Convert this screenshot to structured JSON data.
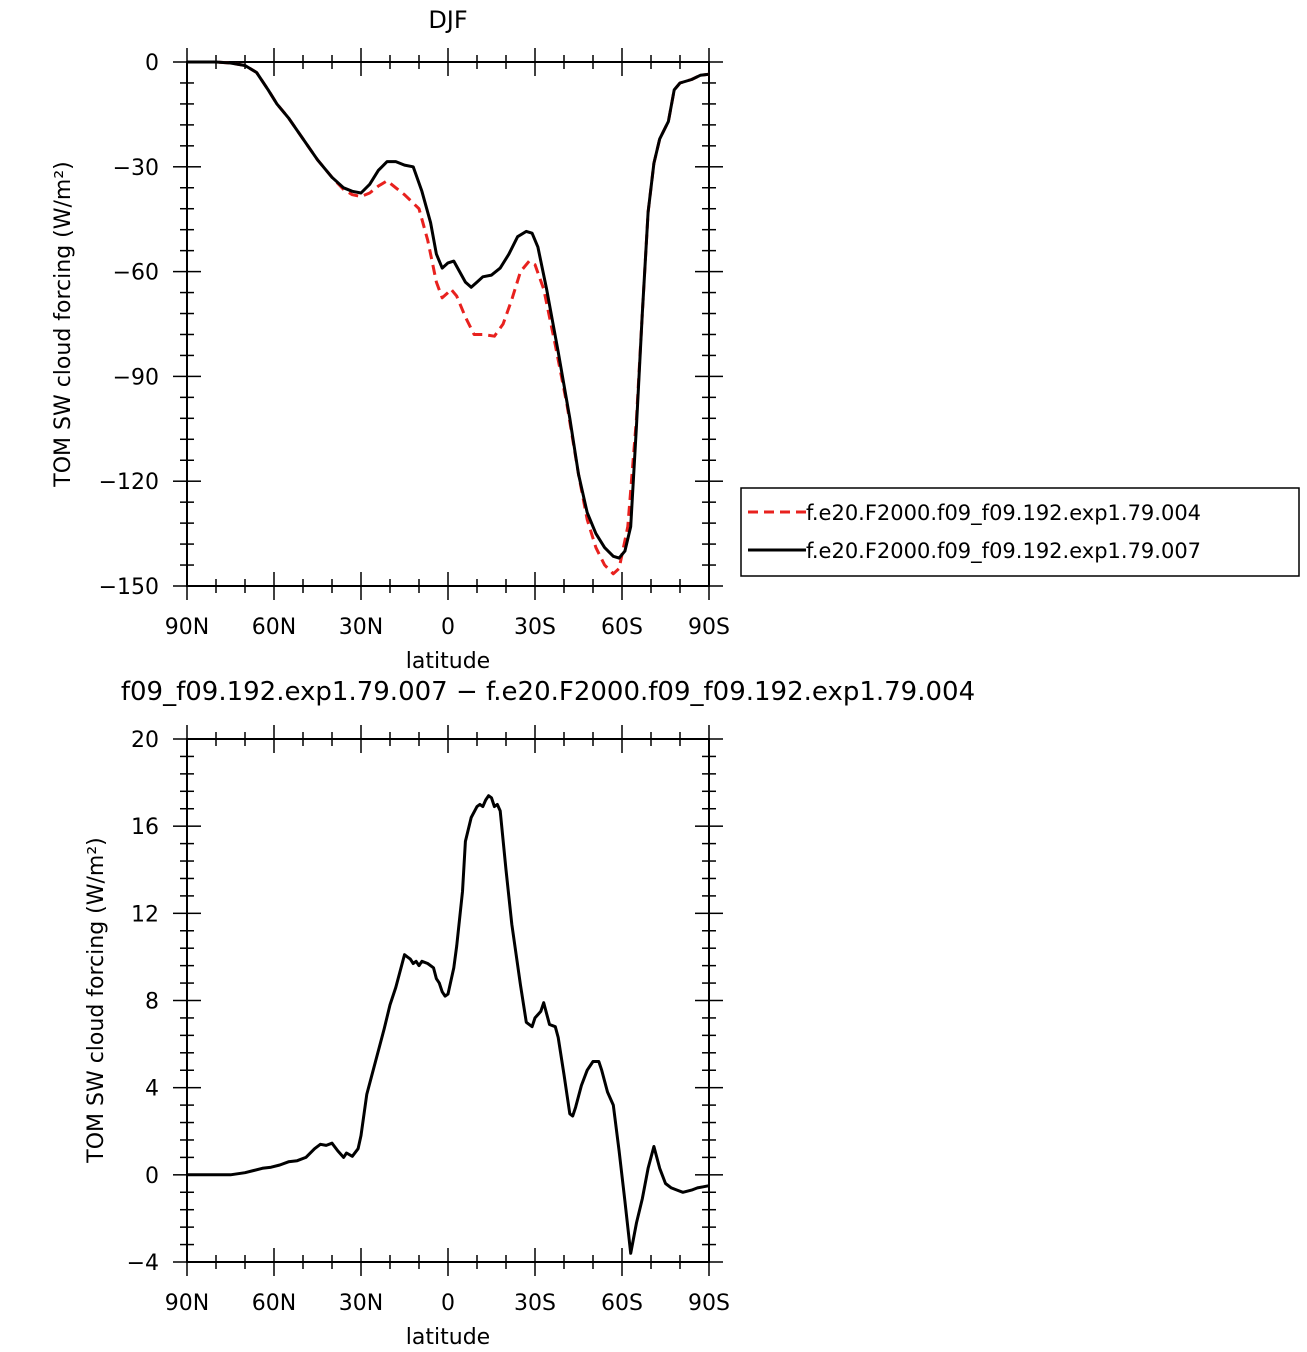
{
  "chart_data": [
    {
      "type": "line",
      "title": "DJF",
      "xlabel": "latitude",
      "ylabel": "TOM SW cloud forcing (W/m²)",
      "xlim": [
        90,
        -90
      ],
      "ylim": [
        -150,
        0
      ],
      "x_ticks": [
        90,
        60,
        30,
        0,
        -30,
        -60,
        -90
      ],
      "x_tick_labels": [
        "90N",
        "60N",
        "30N",
        "0",
        "30S",
        "60S",
        "90S"
      ],
      "y_ticks": [
        0,
        -30,
        -60,
        -90,
        -120,
        -150
      ],
      "y_tick_labels": [
        "0",
        "−30",
        "−60",
        "−90",
        "−120",
        "−150"
      ],
      "legend_position": "right",
      "series": [
        {
          "name": "f.e20.F2000.f09_f09.192.exp1.79.004",
          "color": "#e8211e",
          "dash": "dashed",
          "points": [
            [
              90,
              0
            ],
            [
              80,
              0
            ],
            [
              75,
              -0.3
            ],
            [
              70,
              -1
            ],
            [
              66,
              -3
            ],
            [
              62,
              -8
            ],
            [
              59,
              -12
            ],
            [
              55,
              -16
            ],
            [
              50,
              -22
            ],
            [
              45,
              -28
            ],
            [
              40,
              -33
            ],
            [
              36,
              -36.5
            ],
            [
              33,
              -38
            ],
            [
              30,
              -38.5
            ],
            [
              27,
              -37.5
            ],
            [
              24,
              -35.5
            ],
            [
              21,
              -34
            ],
            [
              18,
              -36
            ],
            [
              15,
              -38
            ],
            [
              10,
              -42
            ],
            [
              7,
              -51
            ],
            [
              4,
              -63
            ],
            [
              2,
              -67.5
            ],
            [
              0,
              -66
            ],
            [
              -1,
              -65
            ],
            [
              -3,
              -67
            ],
            [
              -6,
              -73
            ],
            [
              -9,
              -78
            ],
            [
              -12,
              -78
            ],
            [
              -16,
              -78.5
            ],
            [
              -19,
              -75
            ],
            [
              -22,
              -68
            ],
            [
              -25,
              -60
            ],
            [
              -28,
              -57
            ],
            [
              -30,
              -58
            ],
            [
              -33,
              -65
            ],
            [
              -37,
              -81
            ],
            [
              -41,
              -98
            ],
            [
              -45,
              -118
            ],
            [
              -48,
              -131
            ],
            [
              -51,
              -139
            ],
            [
              -54,
              -144
            ],
            [
              -57,
              -146.5
            ],
            [
              -59,
              -145
            ],
            [
              -62,
              -133
            ],
            [
              -65,
              -102
            ],
            [
              -67,
              -72
            ],
            [
              -69,
              -43
            ],
            [
              -71,
              -29
            ],
            [
              -73,
              -22
            ],
            [
              -76,
              -17
            ],
            [
              -78,
              -8
            ],
            [
              -80,
              -6
            ],
            [
              -84,
              -5
            ],
            [
              -87,
              -3.8
            ],
            [
              -90,
              -3.5
            ]
          ]
        },
        {
          "name": "f.e20.F2000.f09_f09.192.exp1.79.007",
          "color": "#000000",
          "dash": "solid",
          "points": [
            [
              90,
              0
            ],
            [
              80,
              0
            ],
            [
              75,
              -0.3
            ],
            [
              70,
              -1
            ],
            [
              66,
              -3
            ],
            [
              62,
              -8
            ],
            [
              59,
              -12
            ],
            [
              55,
              -16
            ],
            [
              50,
              -22
            ],
            [
              45,
              -28
            ],
            [
              40,
              -33
            ],
            [
              36,
              -36
            ],
            [
              33,
              -37
            ],
            [
              30,
              -37.5
            ],
            [
              27,
              -35
            ],
            [
              24,
              -31
            ],
            [
              21,
              -28.5
            ],
            [
              18,
              -28.5
            ],
            [
              15,
              -29.5
            ],
            [
              12,
              -30
            ],
            [
              9,
              -37
            ],
            [
              6,
              -46
            ],
            [
              4,
              -55
            ],
            [
              2,
              -59
            ],
            [
              0,
              -57.5
            ],
            [
              -2,
              -57
            ],
            [
              -4,
              -60
            ],
            [
              -6,
              -63
            ],
            [
              -8,
              -64.5
            ],
            [
              -10,
              -63
            ],
            [
              -12,
              -61.5
            ],
            [
              -15,
              -61
            ],
            [
              -18,
              -59
            ],
            [
              -21,
              -55
            ],
            [
              -24,
              -50
            ],
            [
              -27,
              -48.5
            ],
            [
              -29,
              -49
            ],
            [
              -31,
              -53
            ],
            [
              -34,
              -65
            ],
            [
              -38,
              -83
            ],
            [
              -42,
              -102
            ],
            [
              -45,
              -118
            ],
            [
              -48,
              -129
            ],
            [
              -51,
              -135
            ],
            [
              -54,
              -139
            ],
            [
              -57,
              -141.5
            ],
            [
              -59,
              -142
            ],
            [
              -61,
              -140
            ],
            [
              -63,
              -133
            ],
            [
              -65,
              -104
            ],
            [
              -67,
              -72
            ],
            [
              -69,
              -43
            ],
            [
              -71,
              -29
            ],
            [
              -73,
              -22
            ],
            [
              -76,
              -17
            ],
            [
              -78,
              -8
            ],
            [
              -80,
              -6
            ],
            [
              -84,
              -5
            ],
            [
              -87,
              -3.8
            ],
            [
              -90,
              -3.5
            ]
          ]
        }
      ]
    },
    {
      "type": "line",
      "title": "f09_f09.192.exp1.79.007 − f.e20.F2000.f09_f09.192.exp1.79.004",
      "xlabel": "latitude",
      "ylabel": "TOM SW cloud forcing (W/m²)",
      "xlim": [
        90,
        -90
      ],
      "ylim": [
        -4,
        20
      ],
      "x_ticks": [
        90,
        60,
        30,
        0,
        -30,
        -60,
        -90
      ],
      "x_tick_labels": [
        "90N",
        "60N",
        "30N",
        "0",
        "30S",
        "60S",
        "90S"
      ],
      "y_ticks": [
        20,
        16,
        12,
        8,
        4,
        0,
        -4
      ],
      "y_tick_labels": [
        "20",
        "16",
        "12",
        "8",
        "4",
        "0",
        "−4"
      ],
      "series": [
        {
          "color": "#000000",
          "dash": "solid",
          "points": [
            [
              90,
              0
            ],
            [
              80,
              0
            ],
            [
              75,
              0
            ],
            [
              70,
              0.1
            ],
            [
              67,
              0.2
            ],
            [
              64,
              0.3
            ],
            [
              61,
              0.35
            ],
            [
              58,
              0.45
            ],
            [
              55,
              0.6
            ],
            [
              52,
              0.65
            ],
            [
              49,
              0.8
            ],
            [
              46,
              1.2
            ],
            [
              44,
              1.4
            ],
            [
              42,
              1.35
            ],
            [
              40,
              1.45
            ],
            [
              38,
              1.1
            ],
            [
              36,
              0.8
            ],
            [
              35,
              1.0
            ],
            [
              33,
              0.85
            ],
            [
              31,
              1.2
            ],
            [
              30,
              1.8
            ],
            [
              28,
              3.7
            ],
            [
              25,
              5.2
            ],
            [
              22,
              6.7
            ],
            [
              20,
              7.8
            ],
            [
              18,
              8.6
            ],
            [
              16,
              9.6
            ],
            [
              15,
              10.1
            ],
            [
              14,
              10.0
            ],
            [
              13,
              9.9
            ],
            [
              12,
              9.7
            ],
            [
              11,
              9.8
            ],
            [
              10,
              9.6
            ],
            [
              9,
              9.8
            ],
            [
              7,
              9.7
            ],
            [
              5,
              9.5
            ],
            [
              4,
              9.0
            ],
            [
              3,
              8.8
            ],
            [
              2,
              8.4
            ],
            [
              1,
              8.2
            ],
            [
              0,
              8.3
            ],
            [
              -1,
              8.9
            ],
            [
              -2,
              9.5
            ],
            [
              -3,
              10.5
            ],
            [
              -5,
              13
            ],
            [
              -6,
              15.3
            ],
            [
              -8,
              16.4
            ],
            [
              -10,
              16.9
            ],
            [
              -11,
              17.0
            ],
            [
              -12,
              16.9
            ],
            [
              -13,
              17.2
            ],
            [
              -14,
              17.4
            ],
            [
              -15,
              17.3
            ],
            [
              -16,
              16.9
            ],
            [
              -17,
              17.0
            ],
            [
              -18,
              16.7
            ],
            [
              -20,
              14
            ],
            [
              -22,
              11.5
            ],
            [
              -25,
              8.7
            ],
            [
              -27,
              7.0
            ],
            [
              -29,
              6.8
            ],
            [
              -30,
              7.2
            ],
            [
              -32,
              7.5
            ],
            [
              -33,
              7.9
            ],
            [
              -34,
              7.4
            ],
            [
              -35,
              6.9
            ],
            [
              -37,
              6.8
            ],
            [
              -38,
              6.3
            ],
            [
              -40,
              4.6
            ],
            [
              -42,
              2.8
            ],
            [
              -43,
              2.7
            ],
            [
              -44,
              3.1
            ],
            [
              -46,
              4.1
            ],
            [
              -48,
              4.8
            ],
            [
              -50,
              5.2
            ],
            [
              -52,
              5.2
            ],
            [
              -53,
              4.8
            ],
            [
              -55,
              3.8
            ],
            [
              -57,
              3.2
            ],
            [
              -59,
              1.1
            ],
            [
              -61,
              -1.2
            ],
            [
              -63,
              -3.6
            ],
            [
              -65,
              -2.2
            ],
            [
              -67,
              -1.1
            ],
            [
              -69,
              0.3
            ],
            [
              -71,
              1.3
            ],
            [
              -73,
              0.3
            ],
            [
              -75,
              -0.4
            ],
            [
              -77,
              -0.6
            ],
            [
              -79,
              -0.7
            ],
            [
              -81,
              -0.8
            ],
            [
              -84,
              -0.7
            ],
            [
              -86,
              -0.6
            ],
            [
              -88,
              -0.55
            ],
            [
              -90,
              -0.5
            ]
          ]
        }
      ]
    }
  ]
}
